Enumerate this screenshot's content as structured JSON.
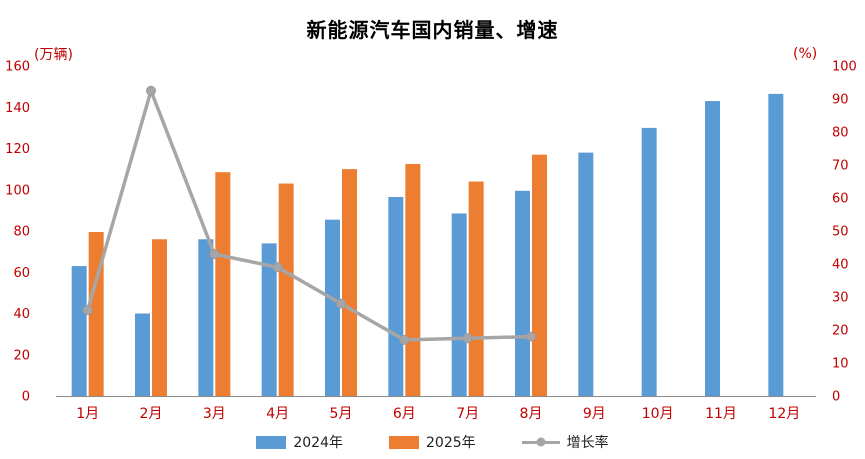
{
  "title": "新能源汽车国内销量、增速",
  "axes": {
    "left_unit": "(万辆)",
    "right_unit": "(%)",
    "tick_color": "#C00000",
    "axis_line_color": "#898989"
  },
  "legend": [
    {
      "label": "2024年",
      "color": "#5B9BD5"
    },
    {
      "label": "2025年",
      "color": "#ED7D31"
    },
    {
      "label": "增长率",
      "color": "#A6A6A6"
    }
  ],
  "chart_data": {
    "type": "bar",
    "subtype": "grouped-bars-plus-line-dual-axis",
    "title": "新能源汽车国内销量、增速",
    "categories": [
      "1月",
      "2月",
      "3月",
      "4月",
      "5月",
      "6月",
      "7月",
      "8月",
      "9月",
      "10月",
      "11月",
      "12月"
    ],
    "series": [
      {
        "name": "2024年",
        "type": "bar",
        "axis": "left",
        "color": "#5B9BD5",
        "values": [
          63,
          40,
          76,
          74,
          85.5,
          96.5,
          88.5,
          99.5,
          118,
          130,
          143,
          146.5
        ]
      },
      {
        "name": "2025年",
        "type": "bar",
        "axis": "left",
        "color": "#ED7D31",
        "values": [
          79.5,
          76,
          108.5,
          103,
          110,
          112.5,
          104,
          117,
          null,
          null,
          null,
          null
        ]
      },
      {
        "name": "增长率",
        "type": "line",
        "axis": "right",
        "color": "#A6A6A6",
        "values": [
          26,
          92.5,
          43,
          39,
          28,
          17,
          17.5,
          18,
          null,
          null,
          null,
          null
        ]
      }
    ],
    "left_axis": {
      "label": "(万辆)",
      "min": 0,
      "max": 160,
      "step": 20
    },
    "right_axis": {
      "label": "(%)",
      "min": 0,
      "max": 100,
      "step": 10
    },
    "grid": false,
    "legend_position": "bottom"
  }
}
